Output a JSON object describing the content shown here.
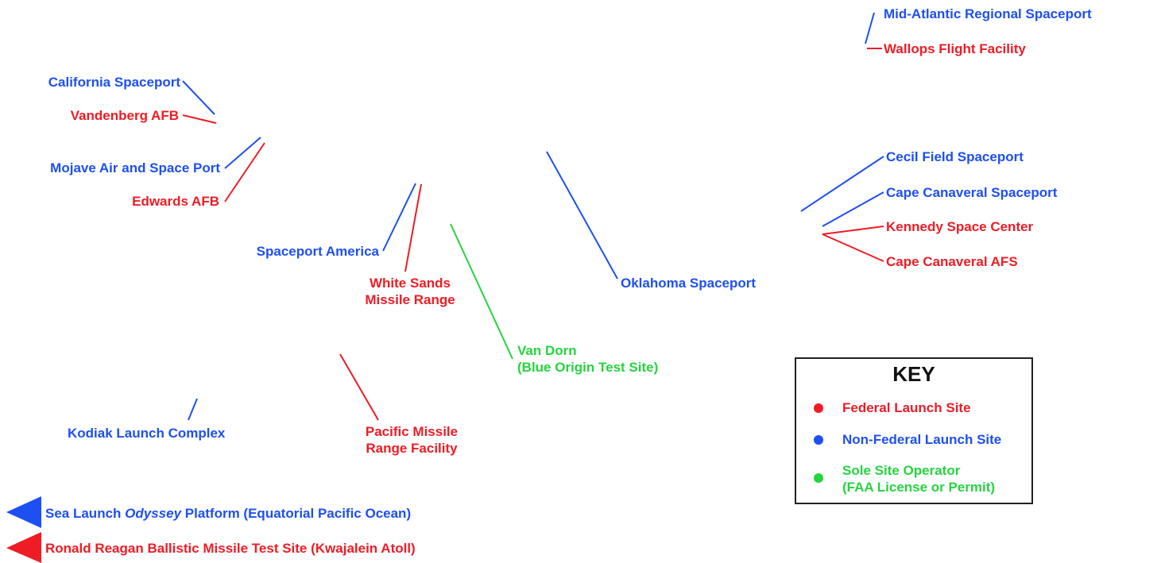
{
  "colors": {
    "federal": "#ee1c25",
    "non_federal": "#1d4ff2",
    "sole_operator": "#26d43f"
  },
  "sites": {
    "mid_atlantic": "Mid-Atlantic Regional Spaceport",
    "wallops": "Wallops Flight Facility",
    "california": "California Spaceport",
    "vandenberg": "Vandenberg AFB",
    "mojave": "Mojave Air and Space Port",
    "edwards": "Edwards AFB",
    "spaceport_america": "Spaceport America",
    "white_sands_1": "White Sands",
    "white_sands_2": "Missile Range",
    "oklahoma": "Oklahoma Spaceport",
    "cecil": "Cecil Field Spaceport",
    "cape_spaceport": "Cape Canaveral Spaceport",
    "kennedy": "Kennedy Space Center",
    "cape_afs": "Cape Canaveral AFS",
    "van_dorn_1": "Van Dorn",
    "van_dorn_2": "(Blue Origin Test Site)",
    "kodiak": "Kodiak Launch Complex",
    "pacific_1": "Pacific Missile",
    "pacific_2": "Range Facility"
  },
  "offsite": {
    "sea_launch_a": "Sea Launch ",
    "sea_launch_b": "Odyssey",
    "sea_launch_c": " Platform (Equatorial Pacific Ocean)",
    "reagan": "Ronald Reagan Ballistic Missile Test Site (Kwajalein Atoll)"
  },
  "key": {
    "title": "KEY",
    "federal": "Federal Launch Site",
    "non_federal": "Non-Federal Launch Site",
    "sole_1": "Sole Site Operator",
    "sole_2": "(FAA License or Permit)"
  }
}
